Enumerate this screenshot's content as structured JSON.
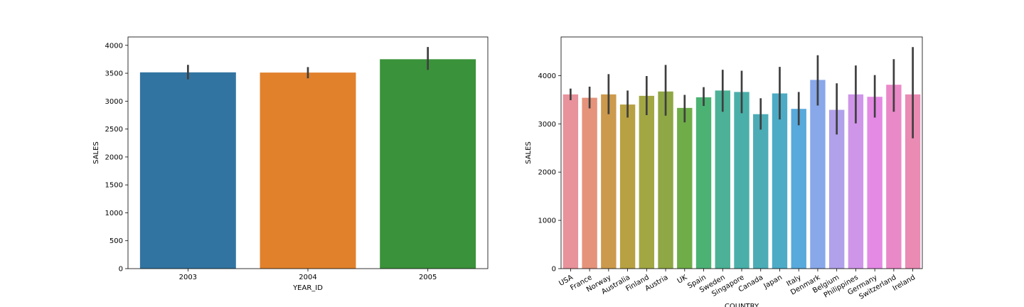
{
  "chart_data": [
    {
      "type": "bar",
      "xlabel": "YEAR_ID",
      "ylabel": "SALES",
      "categories": [
        "2003",
        "2004",
        "2005"
      ],
      "values": [
        3516,
        3512,
        3751
      ],
      "error_low": [
        3390,
        3410,
        3560
      ],
      "error_high": [
        3650,
        3610,
        3970
      ],
      "colors": [
        "#3274a1",
        "#e1812c",
        "#3a923a"
      ],
      "ylim": [
        0,
        4150
      ],
      "yticks": [
        0,
        500,
        1000,
        1500,
        2000,
        2500,
        3000,
        3500,
        4000
      ],
      "ytick_labels": [
        "0",
        "500",
        "1000",
        "1500",
        "2000",
        "2500",
        "3000",
        "3500",
        "4000"
      ],
      "grid": false
    },
    {
      "type": "bar",
      "xlabel": "COUNTRY",
      "ylabel": "SALES",
      "categories": [
        "USA",
        "France",
        "Norway",
        "Australia",
        "Finland",
        "Austria",
        "UK",
        "Spain",
        "Sweden",
        "Singapore",
        "Canada",
        "Japan",
        "Italy",
        "Denmark",
        "Belgium",
        "Philippines",
        "Germany",
        "Switzerland",
        "Ireland"
      ],
      "values": [
        3610,
        3540,
        3610,
        3400,
        3580,
        3670,
        3330,
        3550,
        3690,
        3660,
        3200,
        3630,
        3310,
        3910,
        3290,
        3610,
        3560,
        3810,
        3610
      ],
      "error_low": [
        3490,
        3320,
        3200,
        3130,
        3180,
        3170,
        3030,
        3370,
        3250,
        3220,
        2880,
        3090,
        2970,
        3380,
        2780,
        3010,
        3130,
        3250,
        2700
      ],
      "error_high": [
        3730,
        3770,
        4030,
        3690,
        3990,
        4220,
        3600,
        3760,
        4120,
        4100,
        3530,
        4180,
        3660,
        4420,
        3840,
        4210,
        4010,
        4340,
        4590
      ],
      "colors": [
        "#e8929b",
        "#e5937a",
        "#cc9a4c",
        "#b8a142",
        "#a2a743",
        "#8fa744",
        "#6fad48",
        "#4cb274",
        "#4cb196",
        "#4aafa9",
        "#4bacb6",
        "#4dabc6",
        "#58a9dc",
        "#88a8ea",
        "#b1a0ea",
        "#cf95e9",
        "#e48ae5",
        "#ea89c8",
        "#ea8bb4"
      ],
      "ylim": [
        0,
        4800
      ],
      "yticks": [
        0,
        1000,
        2000,
        3000,
        4000
      ],
      "ytick_labels": [
        "0",
        "1000",
        "2000",
        "3000",
        "4000"
      ],
      "grid": false
    }
  ]
}
